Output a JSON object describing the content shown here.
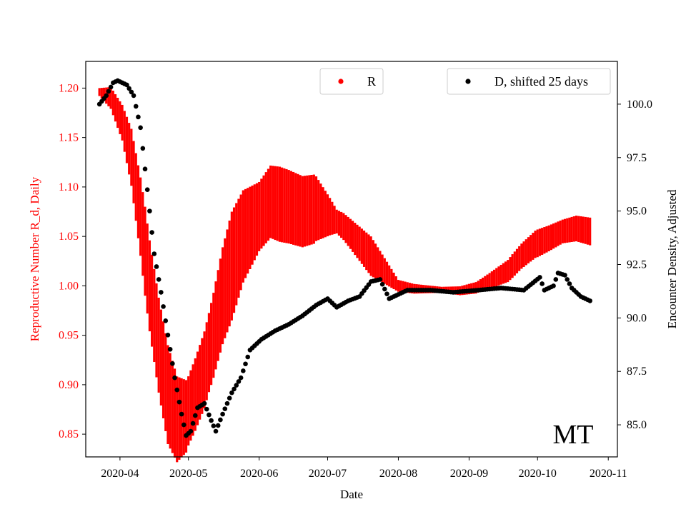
{
  "chart_data": {
    "type": "scatter",
    "title": "",
    "state_label": "MT",
    "xlabel": "Date",
    "ylabel_left": "Reproductive Number R_d, Daily",
    "ylabel_right": "Encounter Density, Adjusted",
    "x_ticks": [
      "2020-04",
      "2020-05",
      "2020-06",
      "2020-07",
      "2020-08",
      "2020-09",
      "2020-10",
      "2020-11"
    ],
    "x_range": [
      "2020-03-17",
      "2020-11-05"
    ],
    "ylim_left": [
      0.827,
      1.227
    ],
    "ylim_right": [
      83.5,
      102.0
    ],
    "yticks_left": [
      "0.85",
      "0.90",
      "0.95",
      "1.00",
      "1.05",
      "1.10",
      "1.15",
      "1.20"
    ],
    "yticks_right": [
      "85.0",
      "87.5",
      "90.0",
      "92.5",
      "95.0",
      "97.5",
      "100.0"
    ],
    "grid": false,
    "legend_r_position": "upper-center",
    "legend_d_position": "top-right",
    "colors": {
      "r": "#ff0000",
      "d": "#000000",
      "left_axis_text": "#ff0000"
    },
    "series": [
      {
        "name": "R",
        "axis": "left",
        "style": "red-band",
        "center_anchors": [
          [
            "2020-03-23",
            1.196
          ],
          [
            "2020-03-28",
            1.19
          ],
          [
            "2020-04-02",
            1.165
          ],
          [
            "2020-04-06",
            1.13
          ],
          [
            "2020-04-10",
            1.07
          ],
          [
            "2020-04-14",
            1.0
          ],
          [
            "2020-04-18",
            0.94
          ],
          [
            "2020-04-22",
            0.89
          ],
          [
            "2020-04-26",
            0.865
          ],
          [
            "2020-04-30",
            0.868
          ],
          [
            "2020-05-04",
            0.89
          ],
          [
            "2020-05-08",
            0.915
          ],
          [
            "2020-05-12",
            0.95
          ],
          [
            "2020-05-16",
            0.99
          ],
          [
            "2020-05-20",
            1.02
          ],
          [
            "2020-05-25",
            1.05
          ],
          [
            "2020-06-01",
            1.07
          ],
          [
            "2020-06-06",
            1.085
          ],
          [
            "2020-06-14",
            1.08
          ],
          [
            "2020-06-20",
            1.075
          ],
          [
            "2020-06-26",
            1.078
          ],
          [
            "2020-07-02",
            1.07
          ],
          [
            "2020-07-08",
            1.06
          ],
          [
            "2020-07-14",
            1.045
          ],
          [
            "2020-07-20",
            1.03
          ],
          [
            "2020-07-26",
            1.015
          ],
          [
            "2020-08-01",
            1.0
          ],
          [
            "2020-08-08",
            0.997
          ],
          [
            "2020-08-20",
            0.996
          ],
          [
            "2020-08-28",
            0.995
          ],
          [
            "2020-09-04",
            0.998
          ],
          [
            "2020-09-10",
            1.005
          ],
          [
            "2020-09-18",
            1.015
          ],
          [
            "2020-09-24",
            1.03
          ],
          [
            "2020-09-30",
            1.042
          ],
          [
            "2020-10-06",
            1.048
          ],
          [
            "2020-10-12",
            1.055
          ],
          [
            "2020-10-18",
            1.058
          ],
          [
            "2020-10-24",
            1.055
          ]
        ],
        "halfwidth_anchors": [
          [
            "2020-03-23",
            0.004
          ],
          [
            "2020-04-02",
            0.018
          ],
          [
            "2020-04-12",
            0.045
          ],
          [
            "2020-04-22",
            0.05
          ],
          [
            "2020-05-01",
            0.035
          ],
          [
            "2020-05-10",
            0.04
          ],
          [
            "2020-05-20",
            0.055
          ],
          [
            "2020-06-01",
            0.035
          ],
          [
            "2020-06-10",
            0.038
          ],
          [
            "2020-06-25",
            0.035
          ],
          [
            "2020-07-05",
            0.012
          ],
          [
            "2020-07-20",
            0.02
          ],
          [
            "2020-08-01",
            0.006
          ],
          [
            "2020-08-20",
            0.003
          ],
          [
            "2020-09-05",
            0.006
          ],
          [
            "2020-09-20",
            0.012
          ],
          [
            "2020-10-01",
            0.014
          ],
          [
            "2020-10-12",
            0.012
          ],
          [
            "2020-10-24",
            0.014
          ]
        ]
      },
      {
        "name": "D, shifted 25 days",
        "axis": "right",
        "style": "black-dots",
        "anchors": [
          [
            "2020-03-23",
            100.0
          ],
          [
            "2020-03-26",
            100.4
          ],
          [
            "2020-03-29",
            101.0
          ],
          [
            "2020-03-31",
            101.1
          ],
          [
            "2020-04-04",
            100.9
          ],
          [
            "2020-04-07",
            100.4
          ],
          [
            "2020-04-10",
            98.9
          ],
          [
            "2020-04-13",
            96.0
          ],
          [
            "2020-04-16",
            93.0
          ],
          [
            "2020-04-19",
            91.2
          ],
          [
            "2020-04-22",
            89.2
          ],
          [
            "2020-04-25",
            87.2
          ],
          [
            "2020-04-28",
            85.5
          ],
          [
            "2020-04-30",
            84.5
          ],
          [
            "2020-05-02",
            84.7
          ],
          [
            "2020-05-05",
            85.8
          ],
          [
            "2020-05-08",
            86.0
          ],
          [
            "2020-05-11",
            85.2
          ],
          [
            "2020-05-13",
            84.7
          ],
          [
            "2020-05-16",
            85.5
          ],
          [
            "2020-05-20",
            86.5
          ],
          [
            "2020-05-24",
            87.2
          ],
          [
            "2020-05-28",
            88.5
          ],
          [
            "2020-06-02",
            89.0
          ],
          [
            "2020-06-08",
            89.4
          ],
          [
            "2020-06-14",
            89.7
          ],
          [
            "2020-06-20",
            90.1
          ],
          [
            "2020-06-26",
            90.6
          ],
          [
            "2020-07-01",
            90.9
          ],
          [
            "2020-07-05",
            90.5
          ],
          [
            "2020-07-10",
            90.8
          ],
          [
            "2020-07-15",
            91.0
          ],
          [
            "2020-07-20",
            91.7
          ],
          [
            "2020-07-24",
            91.8
          ],
          [
            "2020-07-28",
            90.9
          ],
          [
            "2020-08-01",
            91.1
          ],
          [
            "2020-08-05",
            91.3
          ],
          [
            "2020-08-15",
            91.3
          ],
          [
            "2020-08-25",
            91.2
          ],
          [
            "2020-09-05",
            91.3
          ],
          [
            "2020-09-15",
            91.4
          ],
          [
            "2020-09-25",
            91.3
          ],
          [
            "2020-10-02",
            91.9
          ],
          [
            "2020-10-04",
            91.3
          ],
          [
            "2020-10-08",
            91.5
          ],
          [
            "2020-10-10",
            92.1
          ],
          [
            "2020-10-13",
            92.0
          ],
          [
            "2020-10-16",
            91.4
          ],
          [
            "2020-10-20",
            91.0
          ],
          [
            "2020-10-24",
            90.8
          ]
        ]
      }
    ]
  }
}
